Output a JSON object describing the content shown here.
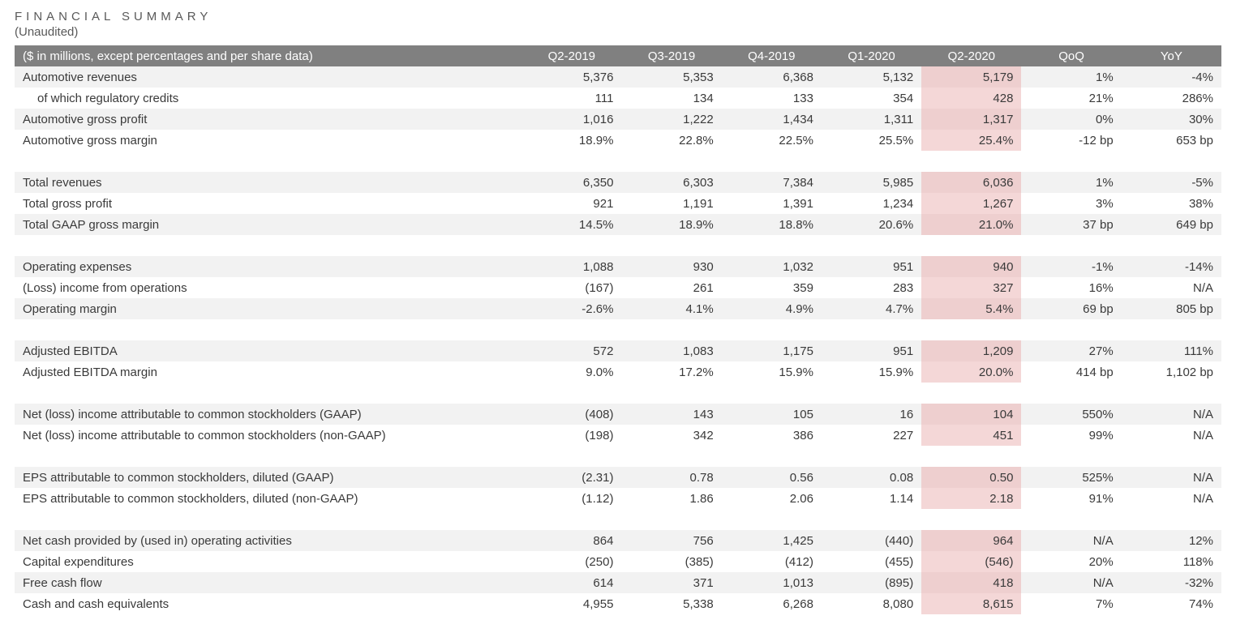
{
  "header": {
    "title": "FINANCIAL SUMMARY",
    "subtitle": "(Unaudited)"
  },
  "table": {
    "columns": [
      "($ in millions, except percentages and per share data)",
      "Q2-2019",
      "Q3-2019",
      "Q4-2019",
      "Q1-2020",
      "Q2-2020",
      "QoQ",
      "YoY"
    ],
    "highlight_col_index": 5,
    "colors": {
      "header_bg": "#808080",
      "header_fg": "#ffffff",
      "row_even_bg": "#f2f2f2",
      "row_odd_bg": "#ffffff",
      "highlight_bg_even": "#eecfcf",
      "highlight_bg_odd": "#f4d7d7",
      "text": "#3a3a3a"
    },
    "groups": [
      {
        "rows": [
          {
            "label": "Automotive revenues",
            "values": [
              "5,376",
              "5,353",
              "6,368",
              "5,132",
              "5,179",
              "1%",
              "-4%"
            ]
          },
          {
            "label": "of which regulatory credits",
            "indent": true,
            "values": [
              "111",
              "134",
              "133",
              "354",
              "428",
              "21%",
              "286%"
            ]
          },
          {
            "label": "Automotive gross profit",
            "values": [
              "1,016",
              "1,222",
              "1,434",
              "1,311",
              "1,317",
              "0%",
              "30%"
            ]
          },
          {
            "label": "Automotive gross margin",
            "values": [
              "18.9%",
              "22.8%",
              "22.5%",
              "25.5%",
              "25.4%",
              "-12 bp",
              "653 bp"
            ]
          }
        ]
      },
      {
        "rows": [
          {
            "label": "Total revenues",
            "values": [
              "6,350",
              "6,303",
              "7,384",
              "5,985",
              "6,036",
              "1%",
              "-5%"
            ]
          },
          {
            "label": "Total gross profit",
            "values": [
              "921",
              "1,191",
              "1,391",
              "1,234",
              "1,267",
              "3%",
              "38%"
            ]
          },
          {
            "label": "Total GAAP gross margin",
            "values": [
              "14.5%",
              "18.9%",
              "18.8%",
              "20.6%",
              "21.0%",
              "37 bp",
              "649 bp"
            ]
          }
        ]
      },
      {
        "rows": [
          {
            "label": "Operating expenses",
            "values": [
              "1,088",
              "930",
              "1,032",
              "951",
              "940",
              "-1%",
              "-14%"
            ]
          },
          {
            "label": "(Loss) income from operations",
            "values": [
              "(167)",
              "261",
              "359",
              "283",
              "327",
              "16%",
              "N/A"
            ]
          },
          {
            "label": "Operating margin",
            "values": [
              "-2.6%",
              "4.1%",
              "4.9%",
              "4.7%",
              "5.4%",
              "69 bp",
              "805 bp"
            ]
          }
        ]
      },
      {
        "rows": [
          {
            "label": "Adjusted EBITDA",
            "values": [
              "572",
              "1,083",
              "1,175",
              "951",
              "1,209",
              "27%",
              "111%"
            ]
          },
          {
            "label": "Adjusted EBITDA margin",
            "values": [
              "9.0%",
              "17.2%",
              "15.9%",
              "15.9%",
              "20.0%",
              "414 bp",
              "1,102 bp"
            ]
          }
        ]
      },
      {
        "rows": [
          {
            "label": "Net (loss) income attributable to common stockholders (GAAP)",
            "values": [
              "(408)",
              "143",
              "105",
              "16",
              "104",
              "550%",
              "N/A"
            ]
          },
          {
            "label": "Net (loss) income attributable to common stockholders (non-GAAP)",
            "values": [
              "(198)",
              "342",
              "386",
              "227",
              "451",
              "99%",
              "N/A"
            ]
          }
        ]
      },
      {
        "rows": [
          {
            "label": "EPS attributable to common stockholders, diluted (GAAP)",
            "values": [
              "(2.31)",
              "0.78",
              "0.56",
              "0.08",
              "0.50",
              "525%",
              "N/A"
            ]
          },
          {
            "label": "EPS attributable to common stockholders, diluted (non-GAAP)",
            "values": [
              "(1.12)",
              "1.86",
              "2.06",
              "1.14",
              "2.18",
              "91%",
              "N/A"
            ]
          }
        ]
      },
      {
        "rows": [
          {
            "label": "Net cash provided by (used in) operating activities",
            "values": [
              "864",
              "756",
              "1,425",
              "(440)",
              "964",
              "N/A",
              "12%"
            ]
          },
          {
            "label": "Capital expenditures",
            "values": [
              "(250)",
              "(385)",
              "(412)",
              "(455)",
              "(546)",
              "20%",
              "118%"
            ]
          },
          {
            "label": "Free cash flow",
            "values": [
              "614",
              "371",
              "1,013",
              "(895)",
              "418",
              "N/A",
              "-32%"
            ]
          },
          {
            "label": "Cash and cash equivalents",
            "values": [
              "4,955",
              "5,338",
              "6,268",
              "8,080",
              "8,615",
              "7%",
              "74%"
            ]
          }
        ]
      }
    ]
  }
}
